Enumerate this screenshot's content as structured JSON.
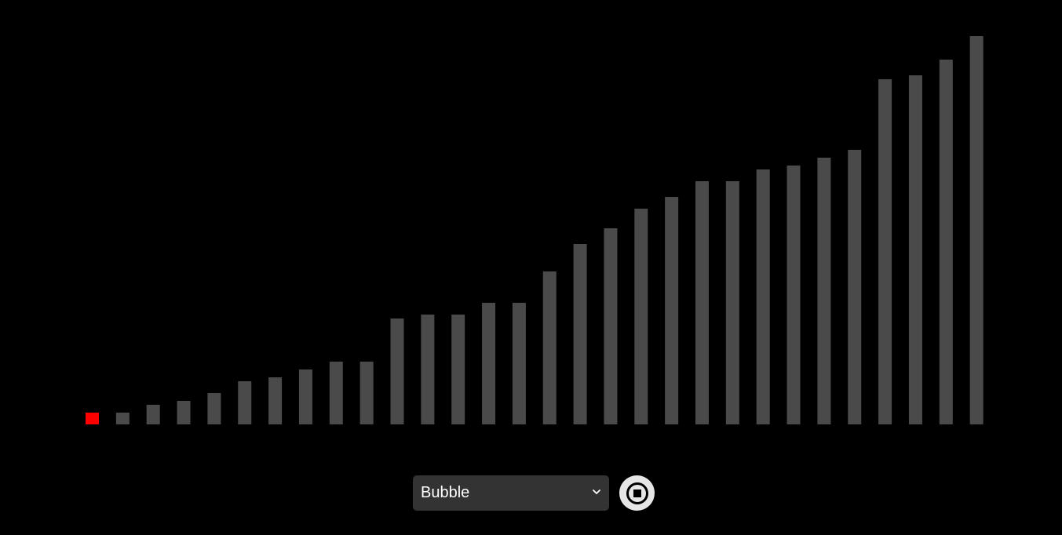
{
  "chart_data": {
    "type": "bar",
    "values": [
      3,
      3,
      5,
      6,
      8,
      11,
      12,
      14,
      16,
      16,
      27,
      28,
      28,
      31,
      31,
      39,
      46,
      50,
      55,
      58,
      62,
      62,
      65,
      66,
      68,
      70,
      88,
      89,
      93,
      99
    ],
    "ylim": [
      0,
      100
    ],
    "highlight_index": 0,
    "colors": {
      "bar": "#4a4a4a",
      "highlight": "#ff0000",
      "background": "#000000"
    }
  },
  "controls": {
    "algorithm_select": {
      "value": "Bubble",
      "chevron_icon": "chevron-down-icon"
    },
    "stop_button": {
      "icon": "stop-icon"
    }
  }
}
